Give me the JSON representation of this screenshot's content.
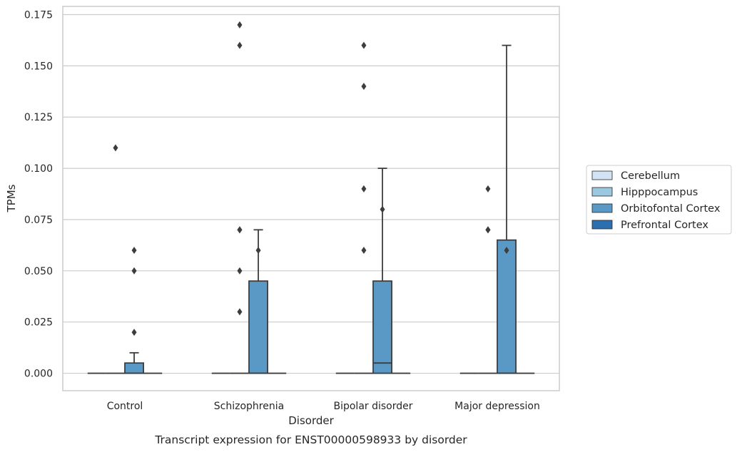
{
  "chart_data": {
    "type": "box",
    "title": "",
    "caption": "Transcript expression for ENST00000598933 by disorder",
    "xlabel": "Disorder",
    "ylabel": "TPMs",
    "ylim": [
      -0.0085,
      0.179
    ],
    "yticks": [
      "0.000",
      "0.025",
      "0.050",
      "0.075",
      "0.100",
      "0.125",
      "0.150",
      "0.175"
    ],
    "ytick_values": [
      0,
      0.025,
      0.05,
      0.075,
      0.1,
      0.125,
      0.15,
      0.175
    ],
    "grid": "horizontal",
    "legend_position": "right",
    "categories": [
      "Control",
      "Schizophrenia",
      "Bipolar disorder",
      "Major depression"
    ],
    "series": [
      {
        "name": "Cerebellum",
        "color": "#d2e3f3",
        "boxes": [
          {
            "q1": 0,
            "median": 0,
            "q3": 0,
            "whisker_low": 0,
            "whisker_high": 0,
            "outliers": []
          },
          {
            "q1": 0,
            "median": 0,
            "q3": 0,
            "whisker_low": 0,
            "whisker_high": 0,
            "outliers": []
          },
          {
            "q1": 0,
            "median": 0,
            "q3": 0,
            "whisker_low": 0,
            "whisker_high": 0,
            "outliers": []
          },
          {
            "q1": 0,
            "median": 0,
            "q3": 0,
            "whisker_low": 0,
            "whisker_high": 0,
            "outliers": []
          }
        ]
      },
      {
        "name": "Hipppocampus",
        "color": "#9ac8e0",
        "boxes": [
          {
            "q1": 0,
            "median": 0,
            "q3": 0,
            "whisker_low": 0,
            "whisker_high": 0,
            "outliers": [
              0.11
            ]
          },
          {
            "q1": 0,
            "median": 0,
            "q3": 0,
            "whisker_low": 0,
            "whisker_high": 0,
            "outliers": [
              0.03,
              0.05,
              0.07,
              0.07,
              0.16,
              0.17
            ]
          },
          {
            "q1": 0,
            "median": 0,
            "q3": 0,
            "whisker_low": 0,
            "whisker_high": 0,
            "outliers": [
              0.09,
              0.06,
              0.14,
              0.16
            ]
          },
          {
            "q1": 0,
            "median": 0,
            "q3": 0,
            "whisker_low": 0,
            "whisker_high": 0,
            "outliers": [
              0.07,
              0.07,
              0.09
            ]
          }
        ]
      },
      {
        "name": "Orbitofontal Cortex",
        "color": "#5a98c5",
        "boxes": [
          {
            "q1": 0,
            "median": 0,
            "q3": 0.005,
            "whisker_low": 0,
            "whisker_high": 0.01,
            "outliers": [
              0.02,
              0.05,
              0.06
            ]
          },
          {
            "q1": 0,
            "median": 0,
            "q3": 0.045,
            "whisker_low": 0,
            "whisker_high": 0.07,
            "outliers": [
              0.06
            ]
          },
          {
            "q1": 0,
            "median": 0.005,
            "q3": 0.045,
            "whisker_low": 0,
            "whisker_high": 0.1,
            "outliers": [
              0.08
            ]
          },
          {
            "q1": 0,
            "median": 0,
            "q3": 0.065,
            "whisker_low": 0,
            "whisker_high": 0.16,
            "outliers": [
              0.06
            ]
          }
        ]
      },
      {
        "name": "Prefrontal Cortex",
        "color": "#2c6fb0",
        "boxes": [
          {
            "q1": 0,
            "median": 0,
            "q3": 0,
            "whisker_low": 0,
            "whisker_high": 0,
            "outliers": []
          },
          {
            "q1": 0,
            "median": 0,
            "q3": 0,
            "whisker_low": 0,
            "whisker_high": 0,
            "outliers": []
          },
          {
            "q1": 0,
            "median": 0,
            "q3": 0,
            "whisker_low": 0,
            "whisker_high": 0,
            "outliers": []
          },
          {
            "q1": 0,
            "median": 0,
            "q3": 0,
            "whisker_low": 0,
            "whisker_high": 0,
            "outliers": []
          }
        ]
      }
    ]
  }
}
